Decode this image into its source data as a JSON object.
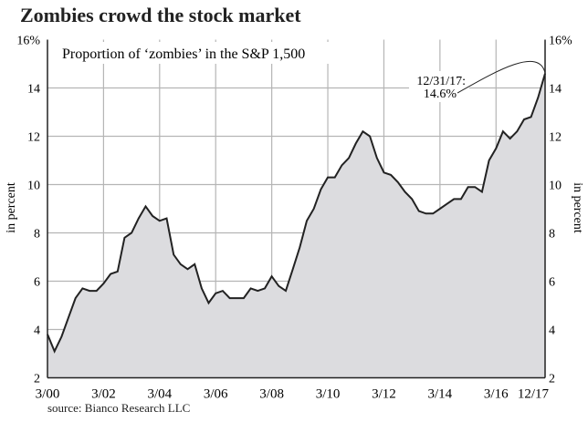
{
  "title": "Zombies crowd the stock market",
  "source": "source: Bianco Research LLC",
  "chart_data": {
    "type": "area",
    "title": "Zombies crowd the stock market",
    "subtitle": "Proportion of ‘zombies’ in the S&P 1,500",
    "ylabel": "in percent",
    "ylim": [
      2,
      16
    ],
    "yticks": [
      2,
      4,
      6,
      8,
      10,
      12,
      14,
      16
    ],
    "ytick_labels": [
      "2",
      "4",
      "6",
      "8",
      "10",
      "12",
      "14",
      "16%"
    ],
    "xtick_labels": [
      "3/00",
      "3/02",
      "3/04",
      "3/06",
      "3/08",
      "3/10",
      "3/12",
      "3/14",
      "3/16",
      "12/17"
    ],
    "xtick_index": [
      0,
      8,
      16,
      24,
      32,
      40,
      48,
      56,
      64,
      71
    ],
    "frequency": "quarterly",
    "grid": true,
    "values": [
      3.8,
      3.1,
      3.7,
      4.5,
      5.3,
      5.7,
      5.6,
      5.6,
      5.9,
      6.3,
      6.4,
      7.8,
      8.0,
      8.6,
      9.1,
      8.7,
      8.5,
      8.6,
      7.1,
      6.7,
      6.5,
      6.7,
      5.7,
      5.1,
      5.5,
      5.6,
      5.3,
      5.3,
      5.3,
      5.7,
      5.6,
      5.7,
      6.2,
      5.8,
      5.6,
      6.5,
      7.4,
      8.5,
      9.0,
      9.8,
      10.3,
      10.3,
      10.8,
      11.1,
      11.7,
      12.2,
      12.0,
      11.1,
      10.5,
      10.4,
      10.1,
      9.7,
      9.4,
      8.9,
      8.8,
      8.8,
      9.0,
      9.2,
      9.4,
      9.4,
      9.9,
      9.9,
      9.7,
      11.0,
      11.5,
      12.2,
      11.9,
      12.2,
      12.7,
      12.8,
      13.6,
      14.6
    ],
    "annotation": {
      "line1": "12/31/17:",
      "line2": "14.6%"
    },
    "colors": {
      "fill": "#dcdcdf",
      "line": "#222222",
      "grid": "#b5b5b5"
    }
  }
}
